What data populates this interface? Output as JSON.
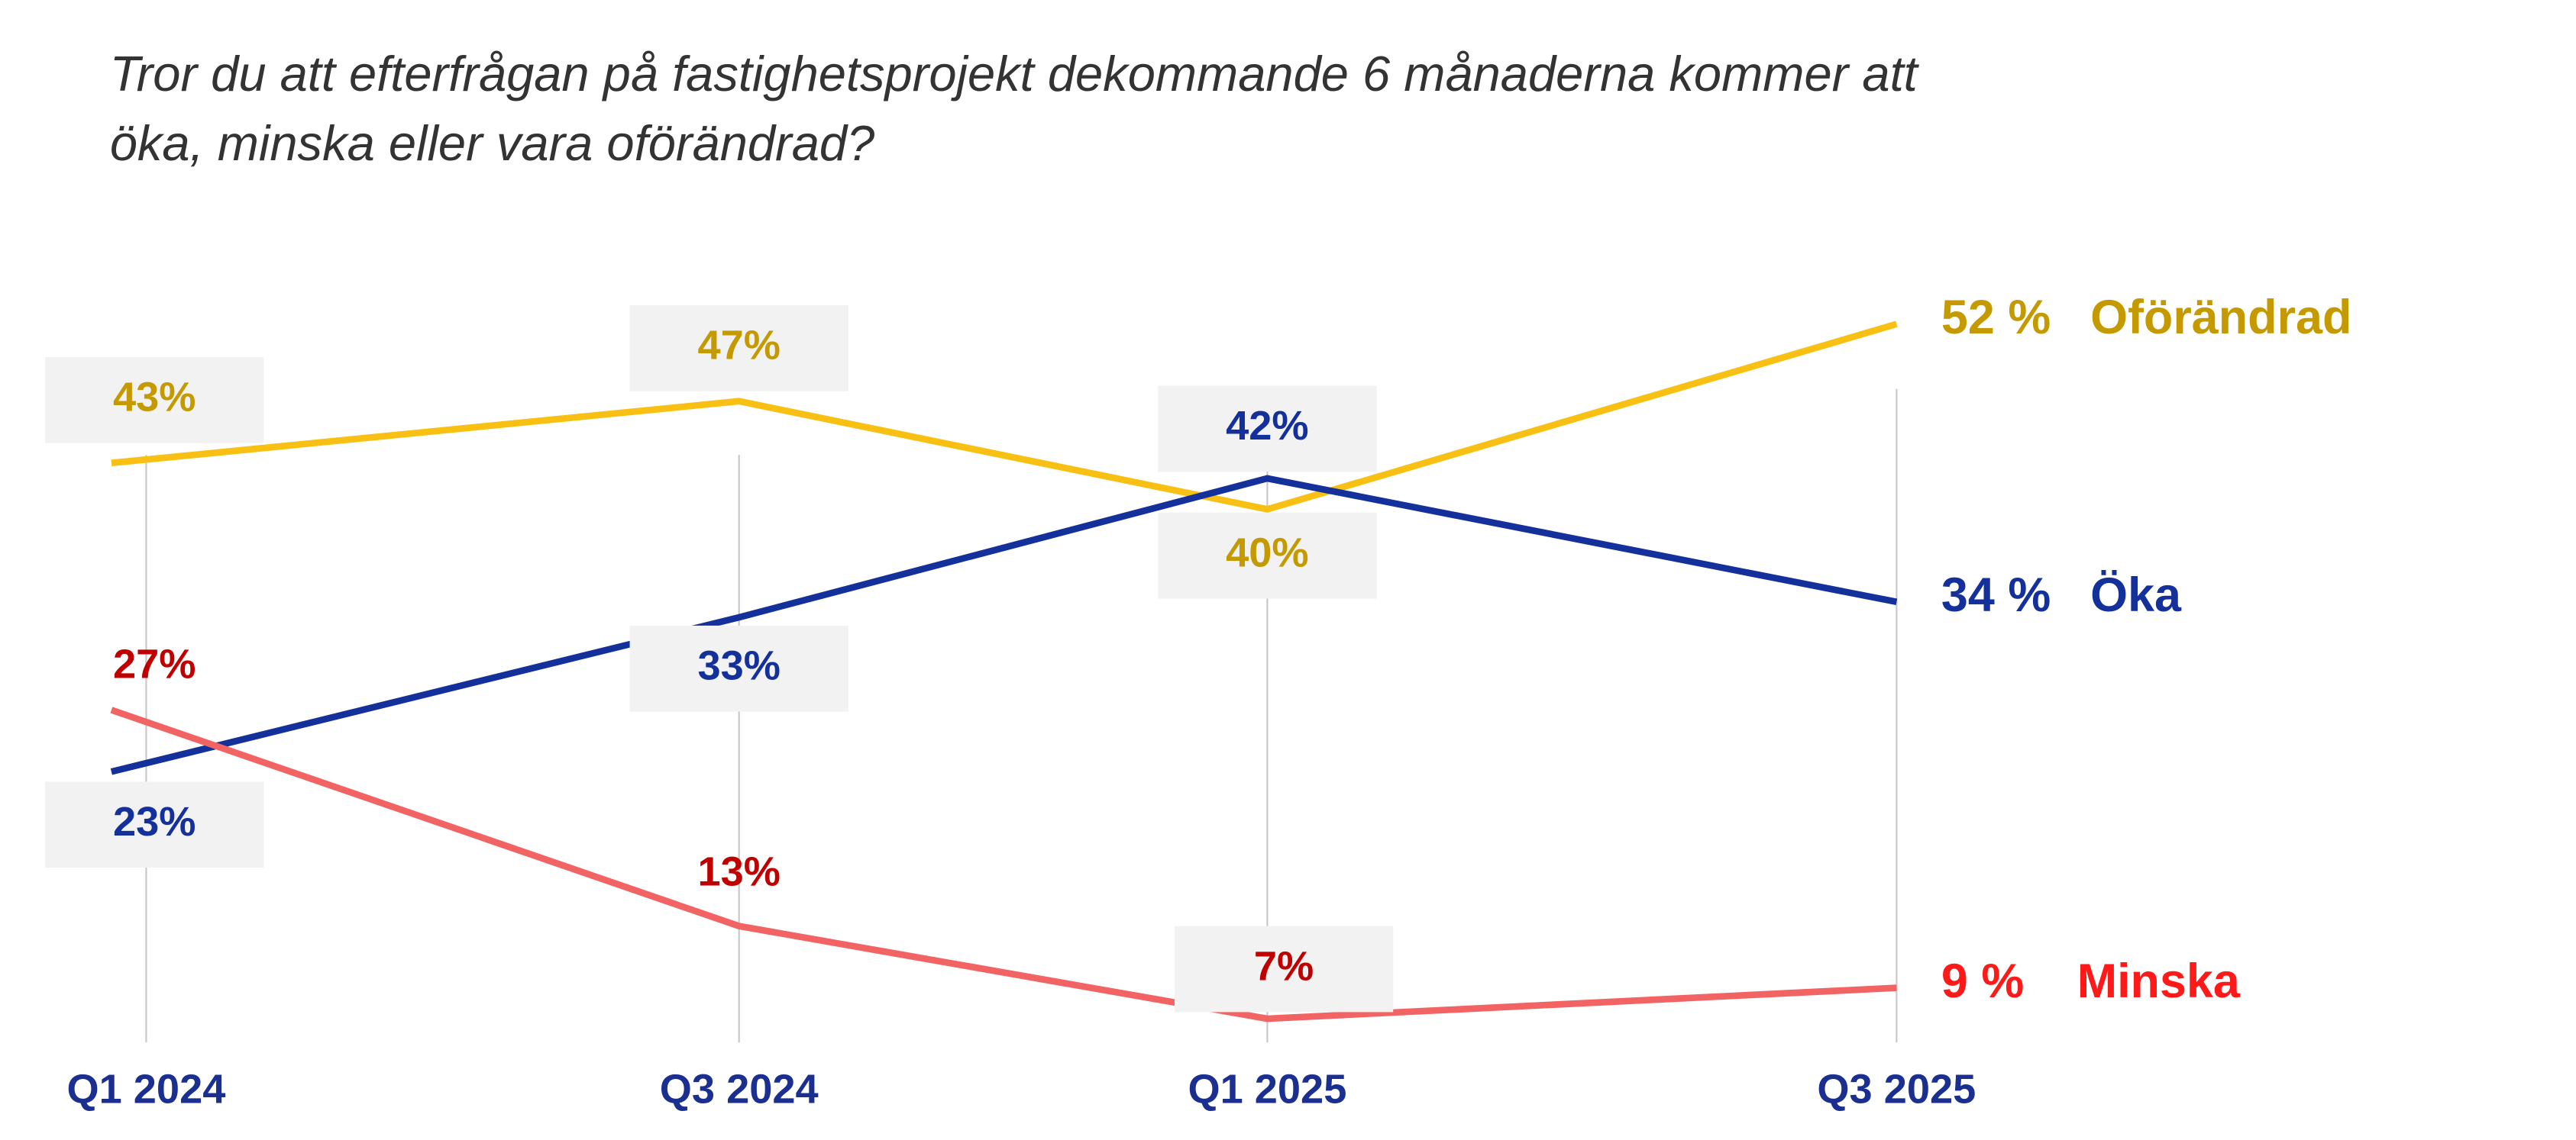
{
  "chart_data": {
    "type": "line",
    "title": [
      "Tror du att efterfrågan på fastighetsprojekt dekommande 6 månaderna kommer att",
      "öka, minska eller vara oförändrad?"
    ],
    "categories": [
      "Q1 2024",
      "Q3 2024",
      "Q1 2025",
      "Q3 2025"
    ],
    "series": [
      {
        "name": "Oförändrad",
        "color": "#f7c012",
        "label_color": "#c49a00",
        "values": [
          43,
          47,
          40,
          52
        ],
        "value_labels": [
          "43%",
          "47%",
          "40%",
          "52 %"
        ]
      },
      {
        "name": "Öka",
        "color": "#14309a",
        "label_color": "#14309a",
        "values": [
          23,
          33,
          42,
          34
        ],
        "value_labels": [
          "23%",
          "33%",
          "42%",
          "34 %"
        ]
      },
      {
        "name": "Minska",
        "color": "#f26464",
        "label_color": "#c00000",
        "end_color": "#ff1a1a",
        "values": [
          27,
          13,
          7,
          9
        ],
        "value_labels": [
          "27%",
          "13%",
          "7%",
          "9 %"
        ]
      }
    ]
  }
}
